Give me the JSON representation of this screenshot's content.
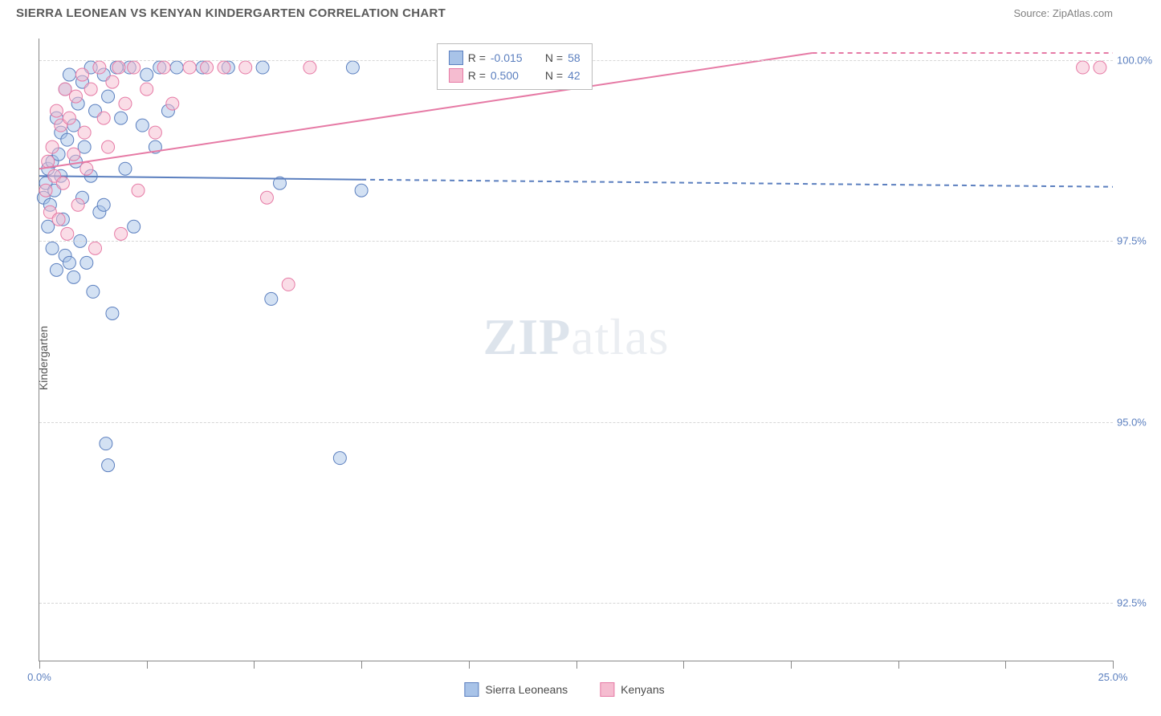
{
  "title": "SIERRA LEONEAN VS KENYAN KINDERGARTEN CORRELATION CHART",
  "source": "Source: ZipAtlas.com",
  "ylabel": "Kindergarten",
  "watermark_zip": "ZIP",
  "watermark_atlas": "atlas",
  "chart": {
    "type": "scatter",
    "background_color": "#ffffff",
    "grid_color": "#d6d6d6",
    "axis_color": "#888888",
    "label_color": "#5b7fbf",
    "xlim": [
      0,
      25
    ],
    "ylim": [
      91.7,
      100.3
    ],
    "xticks": [
      0,
      2.5,
      5,
      7.5,
      10,
      12.5,
      15,
      17.5,
      20,
      22.5,
      25
    ],
    "xtick_labels": {
      "0": "0.0%",
      "25": "25.0%"
    },
    "yticks": [
      92.5,
      95.0,
      97.5,
      100.0
    ],
    "ytick_labels": [
      "92.5%",
      "95.0%",
      "97.5%",
      "100.0%"
    ],
    "marker_radius": 8,
    "marker_opacity": 0.5,
    "series": [
      {
        "name": "Sierra Leoneans",
        "color_fill": "#a8c3e8",
        "color_stroke": "#5b7fbf",
        "r_value": "-0.015",
        "n_value": "58",
        "trend": {
          "x1": 0,
          "y1": 98.4,
          "x2": 7.5,
          "y2": 98.35,
          "x3": 25,
          "y3": 98.25,
          "solid_until_x": 7.5,
          "stroke_width": 2
        },
        "points": [
          [
            0.1,
            98.1
          ],
          [
            0.15,
            98.3
          ],
          [
            0.2,
            98.5
          ],
          [
            0.2,
            97.7
          ],
          [
            0.25,
            98.0
          ],
          [
            0.3,
            98.6
          ],
          [
            0.3,
            97.4
          ],
          [
            0.35,
            98.2
          ],
          [
            0.4,
            99.2
          ],
          [
            0.4,
            97.1
          ],
          [
            0.45,
            98.7
          ],
          [
            0.5,
            99.0
          ],
          [
            0.5,
            98.4
          ],
          [
            0.55,
            97.8
          ],
          [
            0.6,
            99.6
          ],
          [
            0.6,
            97.3
          ],
          [
            0.65,
            98.9
          ],
          [
            0.7,
            99.8
          ],
          [
            0.7,
            97.2
          ],
          [
            0.8,
            99.1
          ],
          [
            0.8,
            97.0
          ],
          [
            0.85,
            98.6
          ],
          [
            0.9,
            99.4
          ],
          [
            0.95,
            97.5
          ],
          [
            1.0,
            99.7
          ],
          [
            1.0,
            98.1
          ],
          [
            1.05,
            98.8
          ],
          [
            1.1,
            97.2
          ],
          [
            1.2,
            99.9
          ],
          [
            1.2,
            98.4
          ],
          [
            1.25,
            96.8
          ],
          [
            1.3,
            99.3
          ],
          [
            1.4,
            97.9
          ],
          [
            1.5,
            99.8
          ],
          [
            1.5,
            98.0
          ],
          [
            1.55,
            94.7
          ],
          [
            1.6,
            99.5
          ],
          [
            1.6,
            94.4
          ],
          [
            1.7,
            96.5
          ],
          [
            1.8,
            99.9
          ],
          [
            1.9,
            99.2
          ],
          [
            2.0,
            98.5
          ],
          [
            2.1,
            99.9
          ],
          [
            2.2,
            97.7
          ],
          [
            2.4,
            99.1
          ],
          [
            2.5,
            99.8
          ],
          [
            2.7,
            98.8
          ],
          [
            2.8,
            99.9
          ],
          [
            3.0,
            99.3
          ],
          [
            3.2,
            99.9
          ],
          [
            3.8,
            99.9
          ],
          [
            4.4,
            99.9
          ],
          [
            5.2,
            99.9
          ],
          [
            5.4,
            96.7
          ],
          [
            5.6,
            98.3
          ],
          [
            7.0,
            94.5
          ],
          [
            7.3,
            99.9
          ],
          [
            7.5,
            98.2
          ]
        ]
      },
      {
        "name": "Kenyans",
        "color_fill": "#f5bcd0",
        "color_stroke": "#e67aa5",
        "r_value": "0.500",
        "n_value": "42",
        "trend": {
          "x1": 0,
          "y1": 98.5,
          "x2": 18,
          "y2": 100.1,
          "x3": 25,
          "y3": 100.1,
          "solid_until_x": 18,
          "stroke_width": 2
        },
        "points": [
          [
            0.15,
            98.2
          ],
          [
            0.2,
            98.6
          ],
          [
            0.25,
            97.9
          ],
          [
            0.3,
            98.8
          ],
          [
            0.35,
            98.4
          ],
          [
            0.4,
            99.3
          ],
          [
            0.45,
            97.8
          ],
          [
            0.5,
            99.1
          ],
          [
            0.55,
            98.3
          ],
          [
            0.6,
            99.6
          ],
          [
            0.65,
            97.6
          ],
          [
            0.7,
            99.2
          ],
          [
            0.8,
            98.7
          ],
          [
            0.85,
            99.5
          ],
          [
            0.9,
            98.0
          ],
          [
            1.0,
            99.8
          ],
          [
            1.05,
            99.0
          ],
          [
            1.1,
            98.5
          ],
          [
            1.2,
            99.6
          ],
          [
            1.3,
            97.4
          ],
          [
            1.4,
            99.9
          ],
          [
            1.5,
            99.2
          ],
          [
            1.6,
            98.8
          ],
          [
            1.7,
            99.7
          ],
          [
            1.85,
            99.9
          ],
          [
            1.9,
            97.6
          ],
          [
            2.0,
            99.4
          ],
          [
            2.2,
            99.9
          ],
          [
            2.3,
            98.2
          ],
          [
            2.5,
            99.6
          ],
          [
            2.7,
            99.0
          ],
          [
            2.9,
            99.9
          ],
          [
            3.1,
            99.4
          ],
          [
            3.5,
            99.9
          ],
          [
            3.9,
            99.9
          ],
          [
            4.3,
            99.9
          ],
          [
            4.8,
            99.9
          ],
          [
            5.3,
            98.1
          ],
          [
            5.8,
            96.9
          ],
          [
            6.3,
            99.9
          ],
          [
            24.3,
            99.9
          ],
          [
            24.7,
            99.9
          ]
        ]
      }
    ]
  },
  "legend_box": {
    "rows": [
      {
        "swatch_fill": "#a8c3e8",
        "swatch_stroke": "#5b7fbf",
        "r_label": "R =",
        "r_val": "-0.015",
        "n_label": "N =",
        "n_val": "58"
      },
      {
        "swatch_fill": "#f5bcd0",
        "swatch_stroke": "#e67aa5",
        "r_label": "R =",
        "r_val": "0.500",
        "n_label": "N =",
        "n_val": "42"
      }
    ]
  },
  "bottom_legend": [
    {
      "swatch_fill": "#a8c3e8",
      "swatch_stroke": "#5b7fbf",
      "label": "Sierra Leoneans"
    },
    {
      "swatch_fill": "#f5bcd0",
      "swatch_stroke": "#e67aa5",
      "label": "Kenyans"
    }
  ]
}
